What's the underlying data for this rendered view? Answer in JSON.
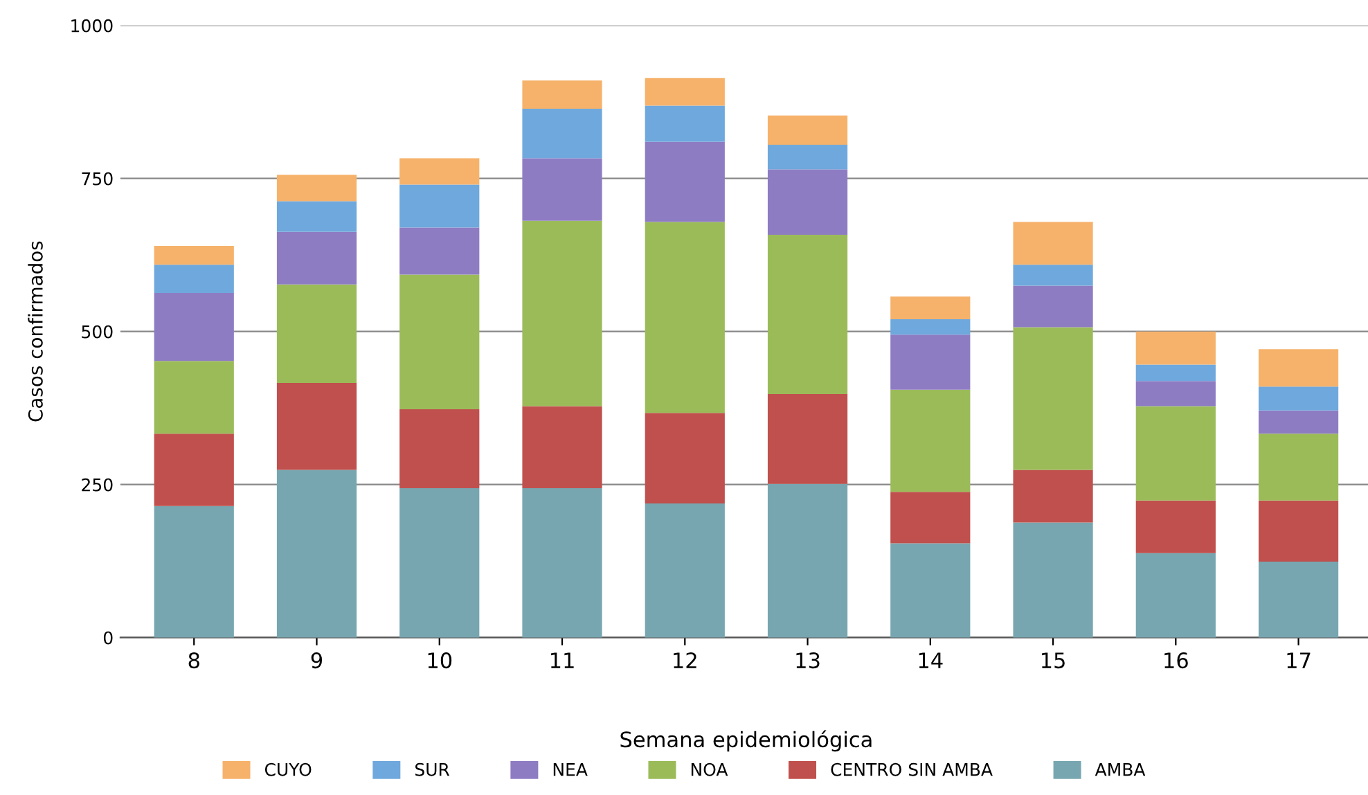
{
  "chart_data": {
    "type": "bar",
    "stacked": true,
    "xlabel": "Semana epidemiológica",
    "ylabel": "Casos confirmados",
    "categories": [
      "8",
      "9",
      "10",
      "11",
      "12",
      "13",
      "14",
      "15",
      "16",
      "17"
    ],
    "series": [
      {
        "name": "AMBA",
        "color": "#77a6b0",
        "values": [
          215,
          274,
          244,
          244,
          219,
          251,
          154,
          188,
          138,
          124
        ]
      },
      {
        "name": "CENTRO SIN AMBA",
        "color": "#c0504d",
        "values": [
          118,
          142,
          129,
          134,
          148,
          147,
          84,
          86,
          86,
          100
        ]
      },
      {
        "name": "NOA",
        "color": "#9bbb59",
        "values": [
          119,
          161,
          220,
          303,
          312,
          260,
          167,
          233,
          154,
          109
        ]
      },
      {
        "name": "NEA",
        "color": "#8e7cc3",
        "values": [
          111,
          86,
          77,
          102,
          131,
          107,
          90,
          68,
          41,
          38
        ]
      },
      {
        "name": "SUR",
        "color": "#6fa8dc",
        "values": [
          46,
          50,
          70,
          81,
          59,
          40,
          25,
          34,
          27,
          39
        ]
      },
      {
        "name": "CUYO",
        "color": "#f6b26b",
        "values": [
          31,
          43,
          43,
          46,
          45,
          48,
          37,
          70,
          54,
          61
        ]
      }
    ],
    "ylim": [
      0,
      1000
    ],
    "yticks": [
      0,
      250,
      500,
      750,
      1000
    ],
    "grid": "y",
    "legend": "bottom"
  }
}
